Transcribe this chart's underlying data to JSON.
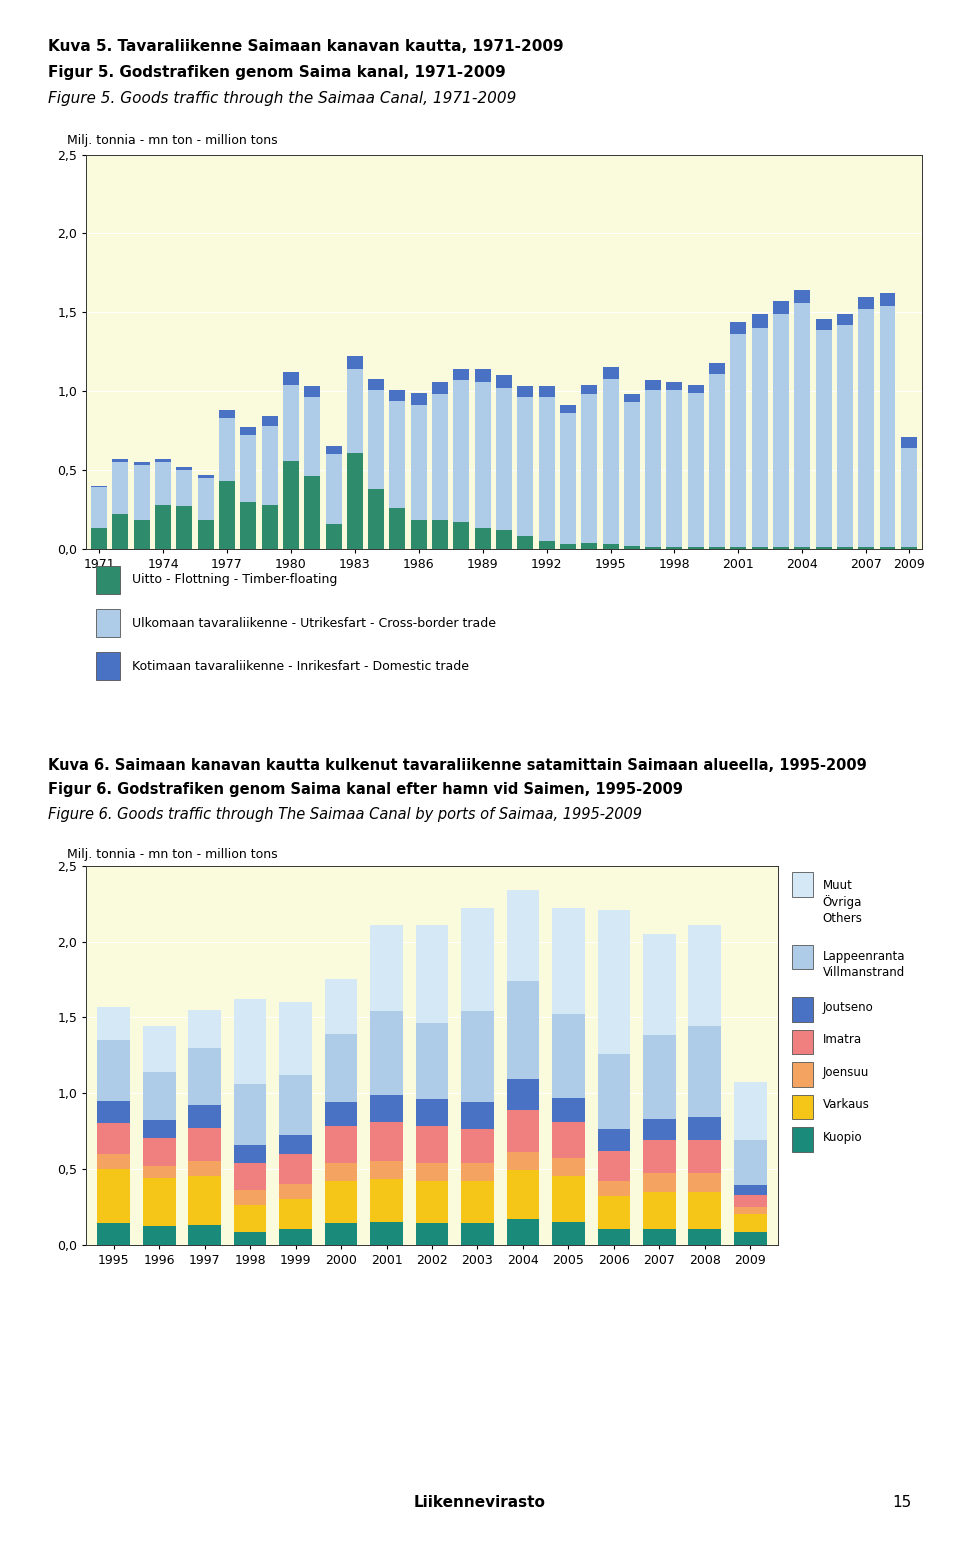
{
  "chart1": {
    "title1": "Kuva 5. Tavaraliikenne Saimaan kanavan kautta, 1971-2009",
    "title2": "Figur 5. Godstrafiken genom Saima kanal, 1971-2009",
    "title3": "Figure 5. Goods traffic through the Saimaa Canal, 1971-2009",
    "ylabel": "Milj. tonnia - mn ton - million tons",
    "years": [
      1971,
      1972,
      1973,
      1974,
      1975,
      1976,
      1977,
      1978,
      1979,
      1980,
      1981,
      1982,
      1983,
      1984,
      1985,
      1986,
      1987,
      1988,
      1989,
      1990,
      1991,
      1992,
      1993,
      1994,
      1995,
      1996,
      1997,
      1998,
      1999,
      2000,
      2001,
      2002,
      2003,
      2004,
      2005,
      2006,
      2007,
      2008,
      2009
    ],
    "timber": [
      0.13,
      0.22,
      0.18,
      0.28,
      0.27,
      0.18,
      0.43,
      0.3,
      0.28,
      0.56,
      0.46,
      0.16,
      0.61,
      0.38,
      0.26,
      0.18,
      0.18,
      0.17,
      0.13,
      0.12,
      0.08,
      0.05,
      0.03,
      0.04,
      0.03,
      0.02,
      0.01,
      0.01,
      0.01,
      0.01,
      0.01,
      0.01,
      0.01,
      0.01,
      0.01,
      0.01,
      0.01,
      0.01,
      0.01
    ],
    "crossborder": [
      0.26,
      0.33,
      0.35,
      0.27,
      0.23,
      0.27,
      0.4,
      0.42,
      0.5,
      0.48,
      0.5,
      0.44,
      0.53,
      0.63,
      0.68,
      0.73,
      0.8,
      0.9,
      0.93,
      0.9,
      0.88,
      0.91,
      0.83,
      0.94,
      1.05,
      0.91,
      1.0,
      1.0,
      0.98,
      1.1,
      1.35,
      1.39,
      1.48,
      1.55,
      1.38,
      1.41,
      1.51,
      1.53,
      0.63
    ],
    "domestic": [
      0.01,
      0.02,
      0.02,
      0.02,
      0.02,
      0.02,
      0.05,
      0.05,
      0.06,
      0.08,
      0.07,
      0.05,
      0.08,
      0.07,
      0.07,
      0.08,
      0.08,
      0.07,
      0.08,
      0.08,
      0.07,
      0.07,
      0.05,
      0.06,
      0.07,
      0.05,
      0.06,
      0.05,
      0.05,
      0.07,
      0.08,
      0.09,
      0.08,
      0.08,
      0.07,
      0.07,
      0.08,
      0.08,
      0.07
    ],
    "ylim": [
      0,
      2.5
    ],
    "yticks": [
      0.0,
      0.5,
      1.0,
      1.5,
      2.0,
      2.5
    ],
    "xticks": [
      1971,
      1974,
      1977,
      1980,
      1983,
      1986,
      1989,
      1992,
      1995,
      1998,
      2001,
      2004,
      2007,
      2009
    ],
    "color_timber": "#2E8B6B",
    "color_crossborder": "#AECCE8",
    "color_domestic": "#4A72C4",
    "bg_color": "#FAFADC",
    "legend_timber": "Uitto - Flottning - Timber-floating",
    "legend_crossborder": "Ulkomaan tavaraliikenne - Utrikesfart - Cross-border trade",
    "legend_domestic": "Kotimaan tavaraliikenne - Inrikesfart - Domestic trade"
  },
  "chart2": {
    "title1": "Kuva 6. Saimaan kanavan kautta kulkenut tavaraliikenne satamittain Saimaan alueella, 1995-2009",
    "title2": "Figur 6. Godstrafiken genom Saima kanal efter hamn vid Saimen, 1995-2009",
    "title3": "Figure 6. Goods traffic through The Saimaa Canal by ports of Saimaa, 1995-2009",
    "ylabel": "Milj. tonnia - mn ton - million tons",
    "years": [
      1995,
      1996,
      1997,
      1998,
      1999,
      2000,
      2001,
      2002,
      2003,
      2004,
      2005,
      2006,
      2007,
      2008,
      2009
    ],
    "kuopio": [
      0.14,
      0.12,
      0.13,
      0.08,
      0.1,
      0.14,
      0.15,
      0.14,
      0.14,
      0.17,
      0.15,
      0.1,
      0.1,
      0.1,
      0.08
    ],
    "varkaus": [
      0.36,
      0.32,
      0.32,
      0.18,
      0.2,
      0.28,
      0.28,
      0.28,
      0.28,
      0.32,
      0.3,
      0.22,
      0.25,
      0.25,
      0.12
    ],
    "joensuu": [
      0.1,
      0.08,
      0.1,
      0.1,
      0.1,
      0.12,
      0.12,
      0.12,
      0.12,
      0.12,
      0.12,
      0.1,
      0.12,
      0.12,
      0.05
    ],
    "imatra": [
      0.2,
      0.18,
      0.22,
      0.18,
      0.2,
      0.24,
      0.26,
      0.24,
      0.22,
      0.28,
      0.24,
      0.2,
      0.22,
      0.22,
      0.08
    ],
    "joutseno": [
      0.15,
      0.12,
      0.15,
      0.12,
      0.12,
      0.16,
      0.18,
      0.18,
      0.18,
      0.2,
      0.16,
      0.14,
      0.14,
      0.15,
      0.06
    ],
    "lappeenranta": [
      0.4,
      0.32,
      0.38,
      0.4,
      0.4,
      0.45,
      0.55,
      0.5,
      0.6,
      0.65,
      0.55,
      0.5,
      0.55,
      0.6,
      0.3
    ],
    "others": [
      0.22,
      0.3,
      0.25,
      0.56,
      0.48,
      0.36,
      0.57,
      0.65,
      0.68,
      0.6,
      0.7,
      0.95,
      0.67,
      0.67,
      0.38
    ],
    "ylim": [
      0,
      2.5
    ],
    "yticks": [
      0.0,
      0.5,
      1.0,
      1.5,
      2.0,
      2.5
    ],
    "color_kuopio": "#1A8A7A",
    "color_varkaus": "#F5C518",
    "color_joensuu": "#F4A460",
    "color_imatra": "#F08080",
    "color_joutseno": "#4A72C4",
    "color_lappeenranta": "#AECCE8",
    "color_others": "#D4E8F5",
    "bg_color": "#FAFADC"
  },
  "footer": "Liikennevirasto",
  "footer_page": "15",
  "bg_page": "#FFFFFF"
}
